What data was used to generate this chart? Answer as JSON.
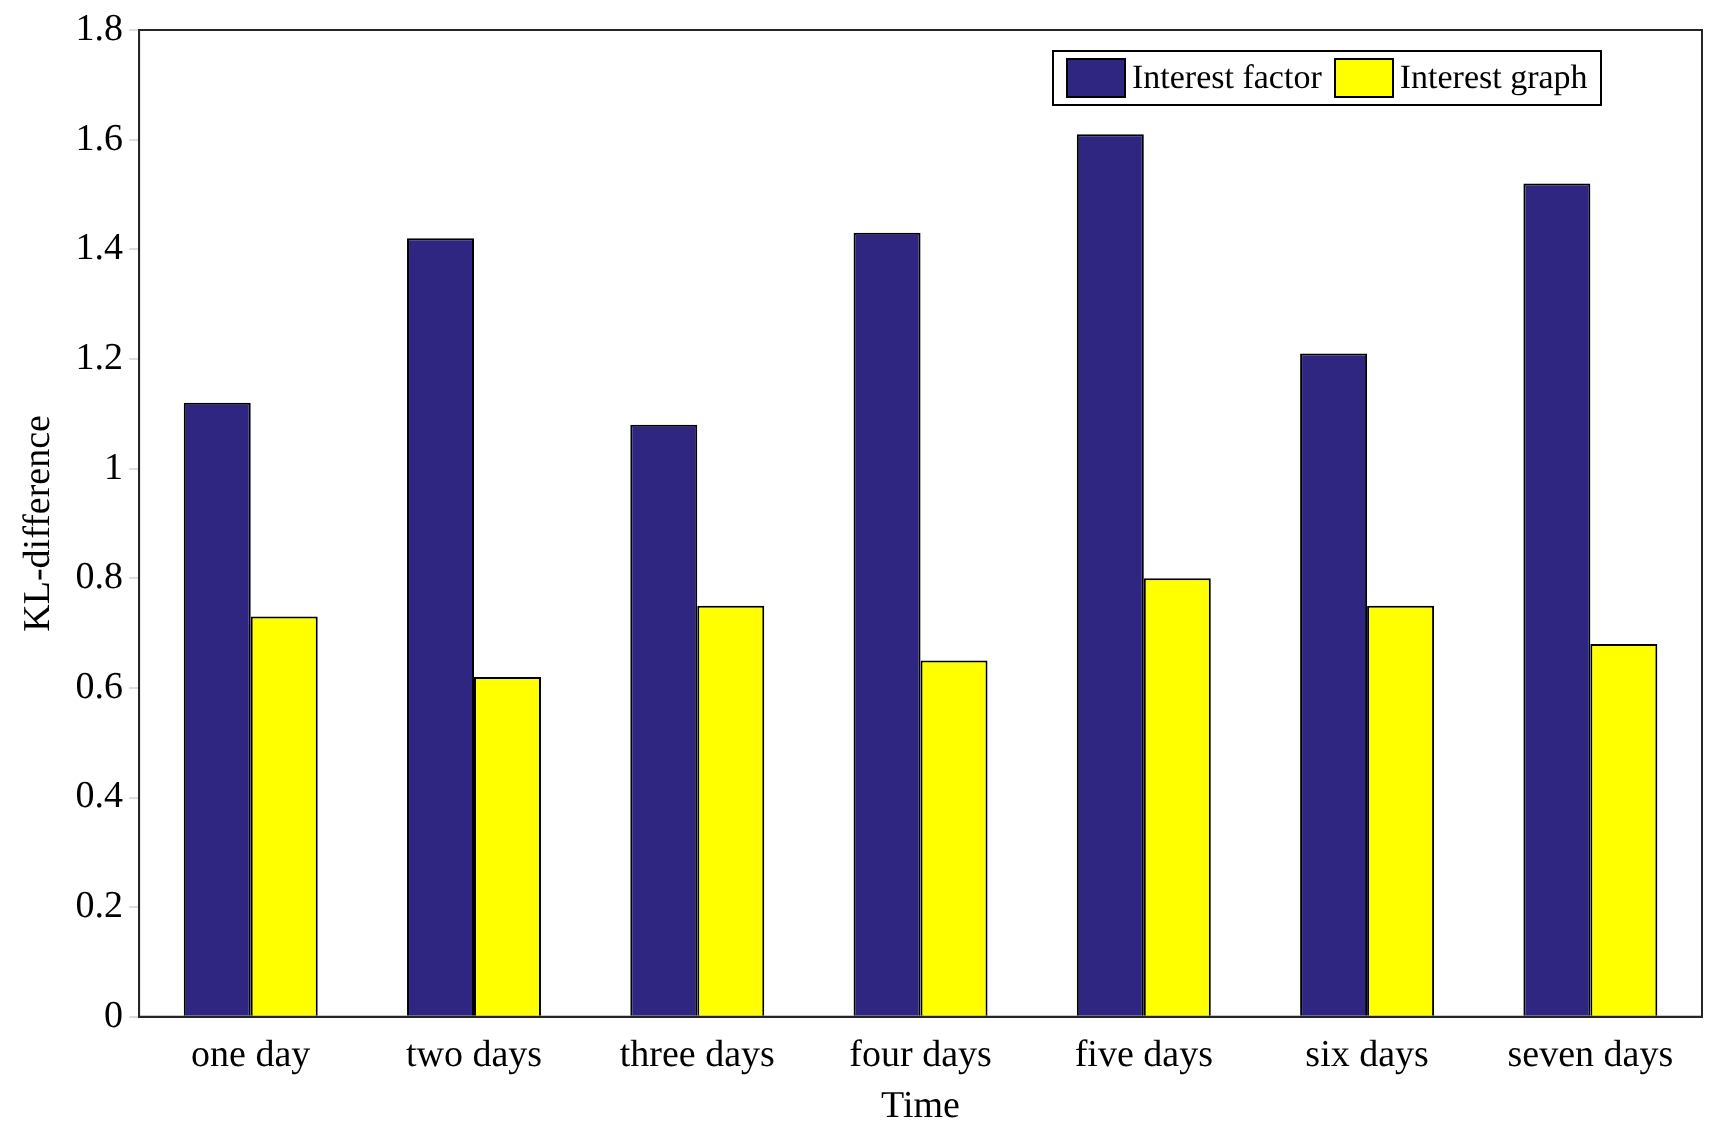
{
  "chart_data": {
    "type": "bar",
    "xlabel": "Time",
    "ylabel": "KL-difference",
    "categories": [
      "one day",
      "two days",
      "three days",
      "four days",
      "five days",
      "six days",
      "seven days"
    ],
    "series": [
      {
        "name": "Interest factor",
        "color": "#2e2680",
        "values": [
          1.12,
          1.42,
          1.08,
          1.43,
          1.61,
          1.21,
          1.52
        ]
      },
      {
        "name": "Interest graph",
        "color": "#ffff00",
        "values": [
          0.73,
          0.62,
          0.75,
          0.65,
          0.8,
          0.75,
          0.68
        ]
      }
    ],
    "ylim": [
      0,
      1.8
    ],
    "yticks": [
      0,
      0.2,
      0.4,
      0.6,
      0.8,
      1,
      1.2,
      1.4,
      1.6,
      1.8
    ],
    "grid": false,
    "legend": "top right"
  }
}
